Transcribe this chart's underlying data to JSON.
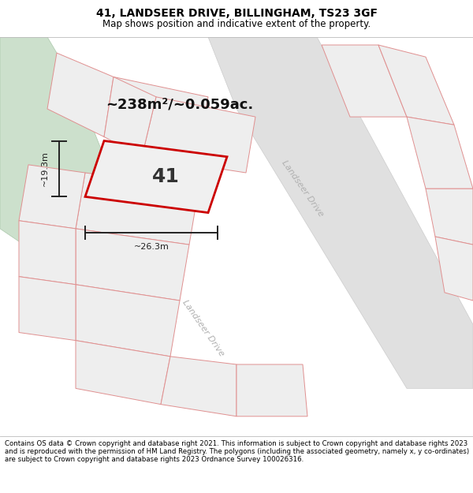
{
  "title": "41, LANDSEER DRIVE, BILLINGHAM, TS23 3GF",
  "subtitle": "Map shows position and indicative extent of the property.",
  "footer": "Contains OS data © Crown copyright and database right 2021. This information is subject to Crown copyright and database rights 2023 and is reproduced with the permission of HM Land Registry. The polygons (including the associated geometry, namely x, y co-ordinates) are subject to Crown copyright and database rights 2023 Ordnance Survey 100026316.",
  "area_label": "~238m²/~0.059ac.",
  "number_label": "41",
  "width_label": "~26.3m",
  "height_label": "~19.3m",
  "bg_color": "#ffffff",
  "map_bg": "#f8f8f8",
  "plot_fill": "#eeeeee",
  "plot_edge": "#e09090",
  "highlight_edge": "#cc0000",
  "highlight_fill": "#f0f0f0",
  "green_color": "#cce0cc",
  "road_color": "#e0e0e0",
  "road_edge": "#cccccc",
  "dim_color": "#222222",
  "road_label_color": "#b0b0b0",
  "title_fontsize": 10,
  "subtitle_fontsize": 8.5,
  "footer_fontsize": 6.2,
  "area_fontsize": 13,
  "number_fontsize": 18,
  "dim_fontsize": 8,
  "road_fontsize": 8
}
